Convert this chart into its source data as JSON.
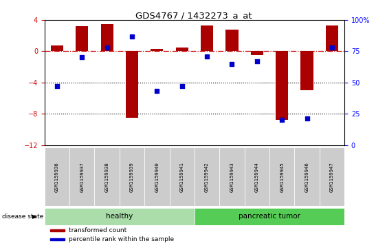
{
  "title": "GDS4767 / 1432273_a_at",
  "samples": [
    "GSM1159936",
    "GSM1159937",
    "GSM1159938",
    "GSM1159939",
    "GSM1159940",
    "GSM1159941",
    "GSM1159942",
    "GSM1159943",
    "GSM1159944",
    "GSM1159945",
    "GSM1159946",
    "GSM1159947"
  ],
  "transformed_count": [
    0.7,
    3.2,
    3.5,
    -8.5,
    0.3,
    0.5,
    3.3,
    2.8,
    -0.5,
    -8.8,
    -5.0,
    3.3
  ],
  "percentile_rank": [
    47,
    70,
    78,
    87,
    43,
    47,
    71,
    65,
    67,
    20,
    21,
    78
  ],
  "groups": [
    "healthy",
    "healthy",
    "healthy",
    "healthy",
    "healthy",
    "healthy",
    "pancreatic tumor",
    "pancreatic tumor",
    "pancreatic tumor",
    "pancreatic tumor",
    "pancreatic tumor",
    "pancreatic tumor"
  ],
  "group_colors": {
    "healthy": "#aaddaa",
    "pancreatic tumor": "#55cc55"
  },
  "bar_color": "#AA0000",
  "dot_color": "#0000CC",
  "hline_color": "#CC0000",
  "ylim": [
    -12,
    4
  ],
  "yticks_left": [
    -12,
    -8,
    -4,
    0,
    4
  ],
  "right_axis_ticks": [
    0,
    25,
    50,
    75,
    100
  ],
  "right_axis_labels": [
    "0",
    "25",
    "50",
    "75",
    "100%"
  ],
  "hline_y": 0,
  "dotted_lines": [
    -4,
    -8
  ],
  "legend_items": [
    {
      "label": "transformed count",
      "color": "#AA0000"
    },
    {
      "label": "percentile rank within the sample",
      "color": "#0000CC"
    }
  ],
  "disease_state_label": "disease state",
  "background_color": "#ffffff"
}
